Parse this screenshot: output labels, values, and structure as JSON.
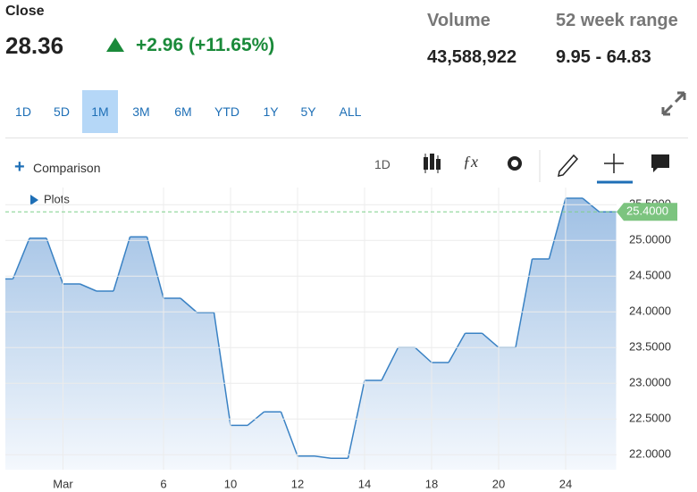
{
  "quote": {
    "close_label": "Close",
    "close": "28.36",
    "change": "+2.96 (+11.65%)",
    "volume_label": "Volume",
    "volume": "43,588,922",
    "range_label": "52 week range",
    "range": "9.95 - 64.83"
  },
  "ranges": [
    "1D",
    "5D",
    "1M",
    "3M",
    "6M",
    "YTD",
    "1Y",
    "5Y",
    "ALL"
  ],
  "selected_range": 2,
  "toolbar": {
    "comparison": "Comparison",
    "interval": "1D",
    "plots": "Plots"
  },
  "chart_data": {
    "type": "area",
    "categories": [
      null,
      null,
      "Mar",
      null,
      null,
      "6",
      null,
      "10",
      null,
      "12",
      null,
      "14",
      null,
      "18",
      null,
      "20",
      null,
      "24",
      null
    ],
    "values": [
      24.46,
      25.03,
      24.39,
      24.29,
      25.05,
      24.19,
      23.99,
      22.41,
      22.6,
      21.98,
      21.95,
      23.04,
      23.5,
      23.29,
      23.7,
      23.5,
      24.74,
      25.59,
      25.4
    ],
    "color": "#3a82c4",
    "ylim": [
      21.79,
      25.74
    ],
    "yticks": [
      {
        "value": 22,
        "label": "22.0000"
      },
      {
        "value": 22.5,
        "label": "22.5000"
      },
      {
        "value": 23,
        "label": "23.0000"
      },
      {
        "value": 23.5,
        "label": "23.5000"
      },
      {
        "value": 24,
        "label": "24.0000"
      },
      {
        "value": 24.5,
        "label": "24.5000"
      },
      {
        "value": 25,
        "label": "25.0000"
      },
      {
        "value": 25.5,
        "label": "25.5000"
      }
    ],
    "last_price": {
      "value": 25.4,
      "label": "25.4000"
    },
    "grid": true
  }
}
